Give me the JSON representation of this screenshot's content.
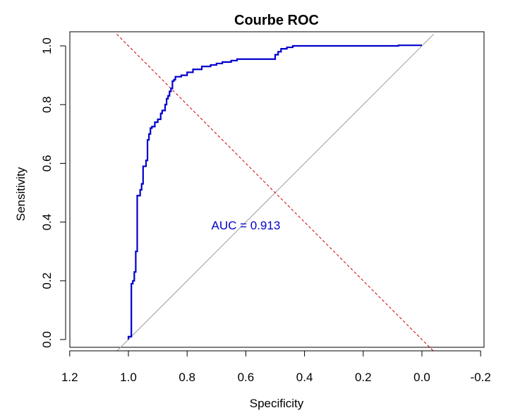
{
  "chart_data": {
    "type": "line",
    "title": "Courbe ROC",
    "xlabel": "Specificity",
    "ylabel": "Sensitivity",
    "x_axis_reversed": true,
    "xlim": [
      1.2,
      -0.2
    ],
    "ylim": [
      0,
      1
    ],
    "x_ticks": [
      "1.2",
      "1.0",
      "0.8",
      "0.6",
      "0.4",
      "0.2",
      "0.0",
      "-0.2"
    ],
    "x_tick_values": [
      1.2,
      1.0,
      0.8,
      0.6,
      0.4,
      0.2,
      0.0,
      -0.2
    ],
    "y_ticks": [
      "0.0",
      "0.2",
      "0.4",
      "0.6",
      "0.8",
      "1.0"
    ],
    "y_tick_values": [
      0.0,
      0.2,
      0.4,
      0.6,
      0.8,
      1.0
    ],
    "grid": false,
    "series": [
      {
        "color": "#0000cc",
        "style": "solid",
        "x": [
          1.0,
          1.0,
          0.99,
          0.99,
          0.985,
          0.985,
          0.98,
          0.98,
          0.975,
          0.975,
          0.97,
          0.97,
          0.96,
          0.96,
          0.955,
          0.955,
          0.95,
          0.95,
          0.94,
          0.94,
          0.935,
          0.935,
          0.93,
          0.93,
          0.925,
          0.925,
          0.92,
          0.92,
          0.91,
          0.91,
          0.9,
          0.9,
          0.89,
          0.89,
          0.885,
          0.885,
          0.875,
          0.875,
          0.87,
          0.87,
          0.865,
          0.865,
          0.86,
          0.86,
          0.855,
          0.855,
          0.85,
          0.85,
          0.845,
          0.845,
          0.84,
          0.84,
          0.82,
          0.82,
          0.8,
          0.8,
          0.78,
          0.78,
          0.75,
          0.75,
          0.72,
          0.72,
          0.7,
          0.7,
          0.68,
          0.68,
          0.65,
          0.65,
          0.63,
          0.63,
          0.5,
          0.5,
          0.49,
          0.49,
          0.48,
          0.48,
          0.46,
          0.46,
          0.44,
          0.44,
          0.08,
          0.08,
          0.0
        ],
        "y": [
          0.0,
          0.01,
          0.01,
          0.19,
          0.19,
          0.2,
          0.2,
          0.23,
          0.23,
          0.3,
          0.3,
          0.49,
          0.49,
          0.51,
          0.51,
          0.53,
          0.53,
          0.59,
          0.59,
          0.61,
          0.61,
          0.68,
          0.68,
          0.7,
          0.7,
          0.72,
          0.72,
          0.725,
          0.725,
          0.74,
          0.74,
          0.75,
          0.75,
          0.77,
          0.77,
          0.78,
          0.78,
          0.8,
          0.8,
          0.82,
          0.82,
          0.83,
          0.83,
          0.845,
          0.845,
          0.855,
          0.855,
          0.88,
          0.88,
          0.885,
          0.885,
          0.895,
          0.895,
          0.9,
          0.9,
          0.91,
          0.91,
          0.92,
          0.92,
          0.93,
          0.93,
          0.935,
          0.935,
          0.94,
          0.94,
          0.945,
          0.945,
          0.95,
          0.95,
          0.955,
          0.955,
          0.97,
          0.97,
          0.98,
          0.98,
          0.99,
          0.99,
          0.995,
          0.995,
          1.0,
          1.0,
          1.002,
          1.002
        ]
      }
    ],
    "reference_lines": [
      {
        "kind": "diagonal",
        "color": "#a0a0a0",
        "style": "solid",
        "x": [
          1.04,
          -0.04
        ],
        "y": [
          -0.04,
          1.04
        ]
      },
      {
        "kind": "crossing",
        "color": "#cc0000",
        "style": "dashed",
        "x": [
          1.04,
          -0.04
        ],
        "y": [
          1.04,
          -0.04
        ]
      }
    ],
    "annotations": [
      {
        "text": "AUC = 0.913",
        "x": 0.6,
        "y": 0.39,
        "color": "#0000cc"
      }
    ]
  }
}
